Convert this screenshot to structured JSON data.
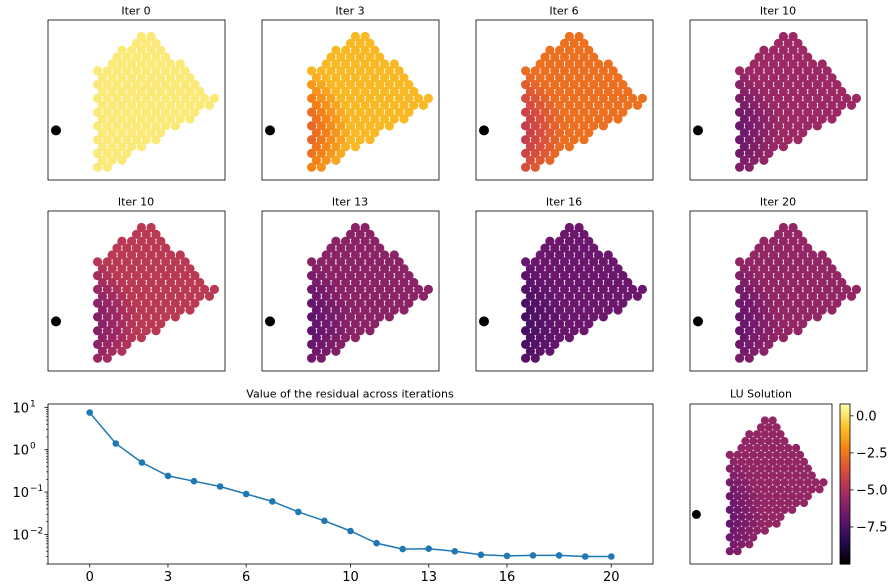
{
  "panel_titles": [
    "Iter 0",
    "Iter 3",
    "Iter 6",
    "Iter 10",
    "Iter 10",
    "Iter 13",
    "Iter 16",
    "Iter 20",
    "LU Solution"
  ],
  "panel_levels": [
    0.92,
    0.84,
    0.68,
    0.42,
    0.5,
    0.38,
    0.3,
    0.4,
    0.4
  ],
  "colorbar": {
    "colormap": "inferno",
    "ticks": [
      "0.0",
      "−2.5",
      "−5.0",
      "−7.5"
    ],
    "tick_values": [
      0.0,
      -2.5,
      -5.0,
      -7.5
    ],
    "range": [
      -10.0,
      0.8
    ]
  },
  "chart_data": {
    "type": "line",
    "title": "Value of the residual across iterations",
    "xlabel": "",
    "ylabel": "",
    "y_scale": "log",
    "xlim": [
      -1.6,
      21.6
    ],
    "ylim": [
      0.002,
      12
    ],
    "x_ticks": [
      "0",
      "3",
      "6",
      "10",
      "13",
      "16",
      "20"
    ],
    "x_tick_values": [
      0,
      3,
      6,
      10,
      13,
      16,
      20
    ],
    "y_ticks": [
      "10",
      "10",
      "10",
      "10"
    ],
    "y_tick_exponents": [
      "1",
      "0",
      "−1",
      "−2"
    ],
    "y_tick_values": [
      10,
      1,
      0.1,
      0.01
    ],
    "series_color": "#1f77b4",
    "x": [
      0,
      1,
      2,
      3,
      4,
      5,
      6,
      7,
      8,
      9,
      10,
      11,
      12,
      13,
      14,
      15,
      16,
      17,
      18,
      19,
      20
    ],
    "values": [
      7.5,
      1.4,
      0.5,
      0.24,
      0.18,
      0.135,
      0.09,
      0.06,
      0.034,
      0.021,
      0.012,
      0.0062,
      0.0045,
      0.0046,
      0.004,
      0.0033,
      0.0031,
      0.0032,
      0.0032,
      0.003,
      0.003
    ]
  }
}
